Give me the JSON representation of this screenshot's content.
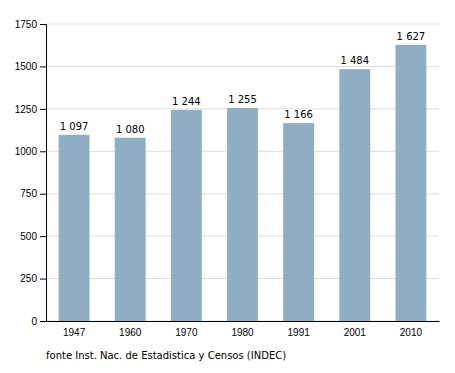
{
  "chart_data": {
    "type": "bar",
    "categories": [
      "1947",
      "1960",
      "1970",
      "1980",
      "1991",
      "2001",
      "2010"
    ],
    "values": [
      1097,
      1080,
      1244,
      1255,
      1166,
      1484,
      1627
    ],
    "value_labels": [
      "1 097",
      "1 080",
      "1 244",
      "1 255",
      "1 166",
      "1 484",
      "1 627"
    ],
    "data_labels": true,
    "color": "#8FAEC4",
    "ylim": [
      0,
      1750
    ],
    "yticks": [
      0,
      250,
      500,
      750,
      1000,
      1250,
      1500,
      1750
    ],
    "grid": true,
    "annotations": [
      "fonte Inst. Nac. de Estadistica y Censos (INDEC)"
    ]
  }
}
